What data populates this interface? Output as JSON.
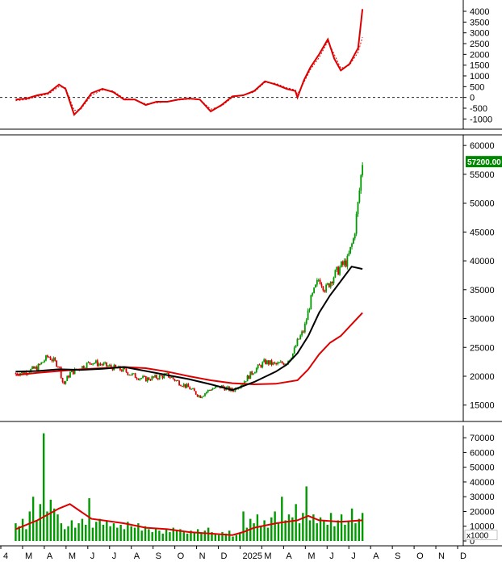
{
  "colors": {
    "background": "#ffffff",
    "axis": "#000000",
    "macd": "#dd0000",
    "signal": "#dd0000",
    "price_up": "#009900",
    "price_down": "#dd0000",
    "ma_short": "#000000",
    "ma_long": "#dd0000",
    "volume": "#009900",
    "volume_ma": "#dd0000",
    "price_badge_bg": "#008800",
    "price_badge_text": "#ffffff"
  },
  "chart_data": [
    {
      "type": "line",
      "panel": "macd",
      "y_ticks": [
        "4000",
        "3500",
        "3000",
        "2500",
        "2000",
        "1500",
        "1000",
        "500",
        "0",
        "-500",
        "-1000"
      ],
      "ylim": [
        -1250,
        4300
      ],
      "zero_line": "dashed",
      "series": [
        {
          "role": "macd",
          "points": [
            [
              0,
              -100
            ],
            [
              0.5,
              -50
            ],
            [
              1,
              100
            ],
            [
              1.5,
              200
            ],
            [
              2,
              600
            ],
            [
              2.3,
              400
            ],
            [
              2.7,
              -800
            ],
            [
              3,
              -500
            ],
            [
              3.5,
              200
            ],
            [
              4,
              400
            ],
            [
              4.5,
              250
            ],
            [
              5,
              -100
            ],
            [
              5.5,
              -100
            ],
            [
              6,
              -350
            ],
            [
              6.5,
              -200
            ],
            [
              7,
              -200
            ],
            [
              7.5,
              -100
            ],
            [
              8,
              -50
            ],
            [
              8.5,
              -100
            ],
            [
              9,
              -650
            ],
            [
              9.5,
              -350
            ],
            [
              10,
              50
            ],
            [
              10.5,
              100
            ],
            [
              11,
              300
            ],
            [
              11.5,
              750
            ],
            [
              12,
              600
            ],
            [
              12.5,
              400
            ],
            [
              12.9,
              300
            ],
            [
              13,
              0
            ],
            [
              13.3,
              800
            ],
            [
              13.6,
              1400
            ],
            [
              14,
              2000
            ],
            [
              14.4,
              2700
            ],
            [
              14.7,
              1800
            ],
            [
              15,
              1250
            ],
            [
              15.4,
              1550
            ],
            [
              15.8,
              2300
            ],
            [
              16,
              4100
            ]
          ]
        },
        {
          "role": "signal",
          "points": [
            [
              0,
              -150
            ],
            [
              0.5,
              -100
            ],
            [
              1,
              50
            ],
            [
              1.5,
              150
            ],
            [
              2,
              500
            ],
            [
              2.3,
              450
            ],
            [
              2.7,
              -600
            ],
            [
              3,
              -550
            ],
            [
              3.5,
              100
            ],
            [
              4,
              350
            ],
            [
              4.5,
              300
            ],
            [
              5,
              -50
            ],
            [
              5.5,
              -100
            ],
            [
              6,
              -300
            ],
            [
              6.5,
              -250
            ],
            [
              7,
              -200
            ],
            [
              7.5,
              -120
            ],
            [
              8,
              -80
            ],
            [
              8.5,
              -100
            ],
            [
              9,
              -550
            ],
            [
              9.5,
              -400
            ],
            [
              10,
              0
            ],
            [
              10.5,
              100
            ],
            [
              11,
              250
            ],
            [
              11.5,
              700
            ],
            [
              12,
              650
            ],
            [
              12.5,
              450
            ],
            [
              12.9,
              350
            ],
            [
              13,
              150
            ],
            [
              13.3,
              700
            ],
            [
              13.6,
              1300
            ],
            [
              14,
              1850
            ],
            [
              14.4,
              2600
            ],
            [
              14.7,
              2000
            ],
            [
              15,
              1350
            ],
            [
              15.4,
              1500
            ],
            [
              15.8,
              2100
            ],
            [
              16,
              2800
            ]
          ]
        }
      ]
    },
    {
      "type": "candlestick",
      "panel": "price",
      "y_ticks": [
        "60000",
        "55000",
        "50000",
        "45000",
        "40000",
        "35000",
        "30000",
        "25000",
        "20000",
        "15000"
      ],
      "ylim": [
        13000,
        61000
      ],
      "last_price_label": "57200.00",
      "last_price": 57200,
      "ma_short": [
        [
          0,
          20800
        ],
        [
          1,
          20900
        ],
        [
          2,
          21200
        ],
        [
          3,
          21100
        ],
        [
          4,
          21300
        ],
        [
          5,
          21600
        ],
        [
          6,
          20900
        ],
        [
          7,
          20200
        ],
        [
          8,
          19500
        ],
        [
          9,
          18600
        ],
        [
          10,
          17600
        ],
        [
          11,
          19000
        ],
        [
          12,
          20800
        ],
        [
          12.5,
          22000
        ],
        [
          13,
          24000
        ],
        [
          13.5,
          27000
        ],
        [
          14,
          31000
        ],
        [
          14.5,
          34000
        ],
        [
          15,
          36500
        ],
        [
          15.5,
          39000
        ],
        [
          16,
          38600
        ]
      ],
      "ma_long": [
        [
          0,
          20200
        ],
        [
          1,
          20600
        ],
        [
          2,
          20900
        ],
        [
          3,
          21200
        ],
        [
          4,
          21400
        ],
        [
          5,
          21600
        ],
        [
          6,
          21400
        ],
        [
          7,
          20800
        ],
        [
          8,
          20000
        ],
        [
          9,
          19300
        ],
        [
          10,
          18800
        ],
        [
          11,
          18600
        ],
        [
          12,
          18700
        ],
        [
          13,
          19300
        ],
        [
          13.5,
          21200
        ],
        [
          14,
          23800
        ],
        [
          14.5,
          25800
        ],
        [
          15,
          27000
        ],
        [
          15.5,
          29000
        ],
        [
          16,
          31000
        ]
      ],
      "close": [
        [
          0,
          20500
        ],
        [
          0.5,
          20800
        ],
        [
          1,
          21500
        ],
        [
          1.5,
          23500
        ],
        [
          2,
          21800
        ],
        [
          2.2,
          18500
        ],
        [
          2.5,
          20500
        ],
        [
          3,
          21500
        ],
        [
          3.5,
          22500
        ],
        [
          4,
          22000
        ],
        [
          4.5,
          21500
        ],
        [
          5,
          21000
        ],
        [
          5.5,
          20000
        ],
        [
          6,
          19500
        ],
        [
          6.5,
          19800
        ],
        [
          7,
          20200
        ],
        [
          7.5,
          19000
        ],
        [
          8,
          18000
        ],
        [
          8.5,
          16500
        ],
        [
          9,
          17800
        ],
        [
          9.5,
          18200
        ],
        [
          10,
          17500
        ],
        [
          10.5,
          19000
        ],
        [
          11,
          21000
        ],
        [
          11.5,
          22500
        ],
        [
          12,
          22000
        ],
        [
          12.5,
          22500
        ],
        [
          12.8,
          24000
        ],
        [
          13,
          26000
        ],
        [
          13.3,
          28000
        ],
        [
          13.6,
          33000
        ],
        [
          14,
          37000
        ],
        [
          14.3,
          35000
        ],
        [
          14.6,
          37000
        ],
        [
          15,
          39000
        ],
        [
          15.3,
          40000
        ],
        [
          15.6,
          44000
        ],
        [
          15.8,
          50000
        ],
        [
          16,
          57200
        ]
      ]
    },
    {
      "type": "bar",
      "panel": "volume",
      "unit_label": "x1000",
      "y_ticks": [
        "70000",
        "60000",
        "50000",
        "40000",
        "30000",
        "20000",
        "10000",
        "0"
      ],
      "ylim": [
        0,
        75000
      ],
      "values": [
        12000,
        10000,
        15000,
        8000,
        20000,
        30000,
        14000,
        25000,
        73000,
        20000,
        28000,
        22000,
        18000,
        12000,
        8000,
        10000,
        14000,
        9000,
        12000,
        15000,
        11000,
        29000,
        9000,
        13000,
        15000,
        11000,
        14000,
        10000,
        12000,
        9000,
        11000,
        8000,
        13000,
        10000,
        9000,
        12000,
        7000,
        10000,
        8000,
        6000,
        9000,
        7000,
        5000,
        8000,
        6000,
        9000,
        7000,
        8000,
        6000,
        5000,
        7000,
        6000,
        8000,
        5000,
        7000,
        9000,
        6000,
        5000,
        4000,
        6000,
        5000,
        7000,
        3000,
        4000,
        5000,
        20000,
        9000,
        15000,
        12000,
        18000,
        10000,
        14000,
        9000,
        16000,
        20000,
        12000,
        30000,
        14000,
        18000,
        16000,
        25000,
        12000,
        19000,
        37000,
        14000,
        18000,
        12000,
        16000,
        14000,
        11000,
        19000,
        10000,
        14000,
        18000,
        11000,
        13000,
        22000,
        12000,
        15000,
        19000
      ],
      "ma": [
        [
          0,
          8000
        ],
        [
          1,
          14000
        ],
        [
          2,
          22000
        ],
        [
          2.5,
          25000
        ],
        [
          3,
          20000
        ],
        [
          3.5,
          15000
        ],
        [
          4,
          14000
        ],
        [
          5,
          12000
        ],
        [
          6,
          9000
        ],
        [
          7,
          8000
        ],
        [
          8,
          6000
        ],
        [
          9,
          5000
        ],
        [
          10,
          4000
        ],
        [
          10.5,
          6000
        ],
        [
          11,
          9000
        ],
        [
          12,
          12000
        ],
        [
          13,
          14000
        ],
        [
          13.5,
          17000
        ],
        [
          14,
          14000
        ],
        [
          15,
          13000
        ],
        [
          16,
          14000
        ]
      ]
    }
  ],
  "x_axis": {
    "labels": [
      "4",
      "M",
      "A",
      "M",
      "J",
      "J",
      "A",
      "S",
      "O",
      "N",
      "D",
      "2025",
      "M",
      "A",
      "M",
      "J",
      "J",
      "A",
      "S",
      "O",
      "N",
      "D"
    ]
  }
}
